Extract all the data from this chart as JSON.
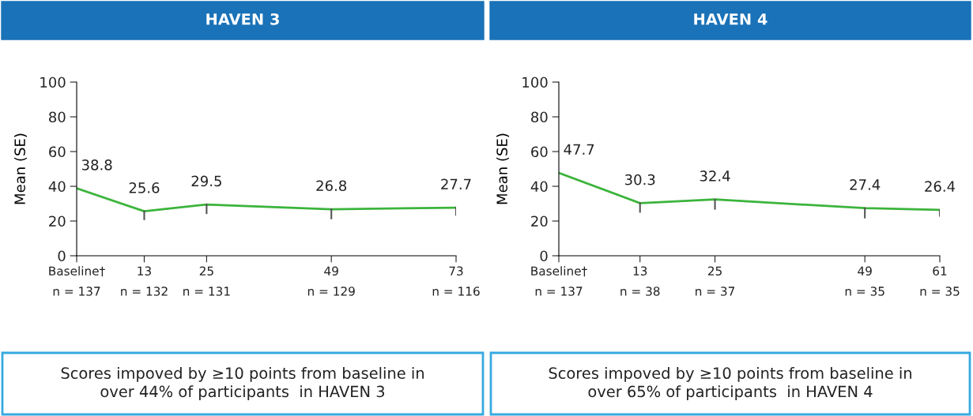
{
  "chart_data": [
    {
      "type": "line",
      "title": "HAVEN 3",
      "ylabel": "Mean (SE)",
      "x": [
        0,
        13,
        25,
        49,
        73
      ],
      "series": [
        {
          "color": "#3cb43c",
          "values": [
            38.8,
            25.6,
            29.5,
            26.8,
            27.7
          ],
          "errors": [
            null,
            [
              21.0,
              25.6
            ],
            [
              24.5,
              29.5
            ],
            [
              21.5,
              26.8
            ],
            [
              23.5,
              27.7
            ]
          ]
        }
      ],
      "xlim": [
        0,
        73
      ],
      "ylim": [
        0,
        100
      ],
      "yticks": [
        0,
        20,
        40,
        60,
        80,
        100
      ],
      "xticks": [
        {
          "value": 0,
          "label": "Baseline†"
        },
        13,
        25,
        49,
        73
      ],
      "data_labels": true,
      "grid": false,
      "marker": "none",
      "line_style": "solid",
      "annotations": [
        "n = 137",
        "n = 132",
        "n = 131",
        "n = 129",
        "n = 116",
        "Scores impoved by ≥10 points from baseline in\nover 44% of participants  in HAVEN 3"
      ]
    },
    {
      "type": "line",
      "title": "HAVEN 4",
      "ylabel": "Mean (SE)",
      "x": [
        0,
        13,
        25,
        49,
        61
      ],
      "series": [
        {
          "color": "#3cb43c",
          "values": [
            47.7,
            30.3,
            32.4,
            27.4,
            26.4
          ],
          "errors": [
            null,
            [
              25.3,
              30.3
            ],
            [
              27.0,
              32.4
            ],
            [
              22.0,
              27.4
            ],
            [
              23.0,
              26.4
            ]
          ]
        }
      ],
      "xlim": [
        0,
        61
      ],
      "ylim": [
        0,
        100
      ],
      "yticks": [
        0,
        20,
        40,
        60,
        80,
        100
      ],
      "xticks": [
        {
          "value": 0,
          "label": "Baseline†"
        },
        13,
        25,
        49,
        61
      ],
      "data_labels": true,
      "grid": false,
      "marker": "none",
      "line_style": "solid",
      "annotations": [
        "n = 137",
        "n = 38",
        "n = 37",
        "n = 35",
        "n = 35",
        "Scores impoved by ≥10 points from baseline in\nover 65% of participants  in HAVEN 4"
      ]
    }
  ]
}
